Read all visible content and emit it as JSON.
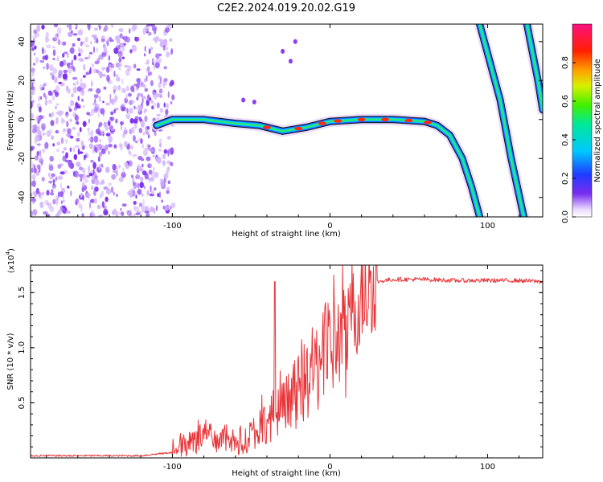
{
  "title": "C2E2.2024.019.20.02.G19",
  "top_panel": {
    "xlabel": "Height of straight line (km)",
    "ylabel": "Frequency (Hz)",
    "colorbar_label": "Normalized spectral amplitude",
    "x_ticks": [
      "-100",
      "0",
      "100"
    ],
    "y_ticks": [
      "40",
      "20",
      "0",
      "-20",
      "-40"
    ],
    "colorbar_ticks": [
      "0.0",
      "0.2",
      "0.4",
      "0.6",
      "0.8"
    ]
  },
  "bottom_panel": {
    "xlabel": "Height of straight line (km)",
    "ylabel": "SNR (10 * v/v)",
    "scale_note": "(x10",
    "scale_exp": "4",
    "x_ticks": [
      "-100",
      "0",
      "100"
    ],
    "y_ticks": [
      "1.5",
      "1.0",
      "0.5"
    ]
  },
  "colors": {
    "snr_line": "#e8353a",
    "noise_purple": "#8a3df0"
  },
  "chart_data": [
    {
      "type": "heatmap",
      "title": "C2E2.2024.019.20.02.G19",
      "xlabel": "Height of straight line (km)",
      "ylabel": "Frequency (Hz)",
      "xlim": [
        -190,
        135
      ],
      "ylim": [
        -50,
        49
      ],
      "colorbar": {
        "label": "Normalized spectral amplitude",
        "range": [
          0.0,
          1.0
        ]
      },
      "noise_region": {
        "x_from": -190,
        "x_to": -105,
        "freq_from": -50,
        "freq_to": 49,
        "amplitude": 0.1
      },
      "signal_track": [
        {
          "x": -110,
          "f": -3
        },
        {
          "x": -100,
          "f": 0
        },
        {
          "x": -80,
          "f": 0
        },
        {
          "x": -60,
          "f": -2
        },
        {
          "x": -45,
          "f": -3
        },
        {
          "x": -30,
          "f": -6
        },
        {
          "x": -15,
          "f": -4
        },
        {
          "x": 0,
          "f": -1
        },
        {
          "x": 20,
          "f": 0
        },
        {
          "x": 40,
          "f": 0
        },
        {
          "x": 60,
          "f": -1
        },
        {
          "x": 68,
          "f": -3
        },
        {
          "x": 76,
          "f": -8
        },
        {
          "x": 84,
          "f": -20
        },
        {
          "x": 90,
          "f": -35
        },
        {
          "x": 95,
          "f": -50
        }
      ],
      "aliased_tracks": [
        [
          {
            "x": 95,
            "f": 49
          },
          {
            "x": 108,
            "f": 10
          },
          {
            "x": 115,
            "f": -20
          },
          {
            "x": 123,
            "f": -50
          }
        ],
        [
          {
            "x": 125,
            "f": 49
          },
          {
            "x": 132,
            "f": 20
          },
          {
            "x": 135,
            "f": 5
          }
        ]
      ]
    },
    {
      "type": "line",
      "xlabel": "Height of straight line (km)",
      "ylabel": "SNR (10 * v/v)",
      "y_multiplier": 10000,
      "xlim": [
        -190,
        135
      ],
      "ylim": [
        0,
        1.75
      ],
      "series": [
        {
          "name": "SNR",
          "x": [
            -190,
            -120,
            -100,
            -90,
            -80,
            -70,
            -60,
            -50,
            -40,
            -30,
            -20,
            -10,
            0,
            5,
            10,
            15,
            20,
            25,
            30,
            40,
            60,
            80,
            100,
            120,
            135
          ],
          "y": [
            0.02,
            0.02,
            0.05,
            0.15,
            0.2,
            0.18,
            0.15,
            0.2,
            0.35,
            0.45,
            0.6,
            0.8,
            1.0,
            1.1,
            1.05,
            1.3,
            1.45,
            1.55,
            1.6,
            1.62,
            1.62,
            1.61,
            1.61,
            1.61,
            1.6
          ]
        }
      ],
      "spikes": [
        {
          "x": -35,
          "y": 1.6
        },
        {
          "x": 8,
          "y": 1.75
        },
        {
          "x": 10,
          "y": 0.55
        }
      ]
    }
  ]
}
